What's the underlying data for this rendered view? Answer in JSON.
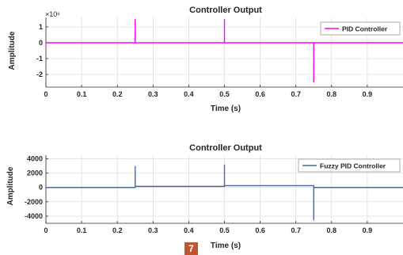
{
  "page_badge": "7",
  "colors": {
    "pid": "#ff00ff",
    "fuzzy": "#4a6a94",
    "axis": "#262626",
    "grid": "#d6d6d6"
  },
  "chart_data": [
    {
      "type": "line",
      "title": "Controller Output",
      "xlabel": "Time (s)",
      "ylabel": "Amplitude",
      "xlim": [
        0,
        1
      ],
      "ylim": [
        -2.8,
        1.6
      ],
      "y_multiplier": "×10⁶",
      "xticks": [
        0,
        0.1,
        0.2,
        0.3,
        0.4,
        0.5,
        0.6,
        0.7,
        0.8,
        0.9
      ],
      "xtick_labels": [
        "0",
        "0.1",
        "0.2",
        "0.3",
        "0.4",
        "0.5",
        "0.6",
        "0.7",
        "0.8",
        "0.9"
      ],
      "yticks": [
        1,
        0,
        -1,
        -2
      ],
      "ytick_labels": [
        "1",
        "0",
        "-1",
        "-2"
      ],
      "legend": "top-right",
      "series": [
        {
          "name": "PID Controller",
          "x": [
            0,
            0.25,
            0.25,
            0.25,
            0.2502,
            0.5,
            0.5,
            0.5,
            0.5002,
            0.75,
            0.75,
            0.75,
            0.7502,
            1
          ],
          "y": [
            0,
            0,
            1.5,
            0,
            0,
            0,
            1.5,
            0,
            0,
            0,
            -2.5,
            0,
            0,
            0
          ]
        }
      ]
    },
    {
      "type": "line",
      "title": "Controller Output",
      "xlabel": "Time (s)",
      "ylabel": "Amplitude",
      "xlim": [
        0,
        1
      ],
      "ylim": [
        -5000,
        4500
      ],
      "xticks": [
        0,
        0.1,
        0.2,
        0.3,
        0.4,
        0.5,
        0.6,
        0.7,
        0.8,
        0.9
      ],
      "xtick_labels": [
        "0",
        "0.1",
        "0.2",
        "0.3",
        "0.4",
        "0.5",
        "0.6",
        "0.7",
        "0.8",
        "0.9"
      ],
      "yticks": [
        4000,
        2000,
        0,
        -2000,
        -4000
      ],
      "ytick_labels": [
        "4000",
        "2000",
        "0",
        "-2000",
        "-4000"
      ],
      "legend": "top-right",
      "series": [
        {
          "name": "Fuzzy PID Controller",
          "x": [
            0,
            0.25,
            0.25,
            0.25,
            0.252,
            0.5,
            0.5,
            0.5,
            0.502,
            0.75,
            0.75,
            0.75,
            0.752,
            1
          ],
          "y": [
            0,
            0,
            3000,
            150,
            150,
            150,
            3200,
            250,
            250,
            250,
            -4600,
            -50,
            0,
            0
          ]
        }
      ]
    }
  ]
}
